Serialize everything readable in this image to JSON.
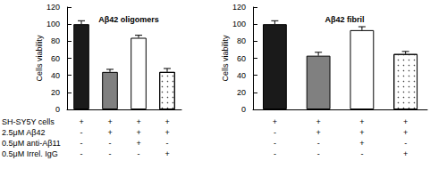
{
  "chart_data": [
    {
      "type": "bar",
      "title": "Aβ42 oligomers",
      "y_label": "Cells viability",
      "categories": [
        null,
        null,
        null,
        null
      ],
      "values": [
        100,
        44,
        84,
        44
      ],
      "errors": [
        4,
        3,
        3,
        4
      ],
      "colors": [
        "#1a1a1a",
        "#808080",
        "#ffffff",
        "#ffffff"
      ],
      "ylim": [
        0,
        120
      ],
      "yticks": [
        0,
        20,
        40,
        60,
        80,
        100,
        120
      ]
    },
    {
      "type": "bar",
      "title": "Aβ42 fibril",
      "y_label": "Cells viability",
      "categories": [
        null,
        null,
        null,
        null
      ],
      "values": [
        100,
        63,
        93,
        65
      ],
      "errors": [
        4,
        4,
        4,
        3
      ],
      "colors": [
        "#1a1a1a",
        "#808080",
        "#ffffff",
        "#ffffff"
      ],
      "ylim": [
        0,
        120
      ],
      "yticks": [
        0,
        20,
        40,
        60,
        80,
        100,
        120
      ]
    }
  ],
  "conditions": [
    {
      "label": "SH-SY5Y cells",
      "marks": [
        "+",
        "+",
        "+",
        "+"
      ]
    },
    {
      "label": "2.5μM Aβ42",
      "marks": [
        "-",
        "+",
        "+",
        "+"
      ]
    },
    {
      "label": "0.5μM anti-Aβ11",
      "marks": [
        "-",
        "-",
        "+",
        "-"
      ]
    },
    {
      "label": "0.5μM Irrel. IgG",
      "marks": [
        "-",
        "-",
        "-",
        "+"
      ]
    }
  ]
}
